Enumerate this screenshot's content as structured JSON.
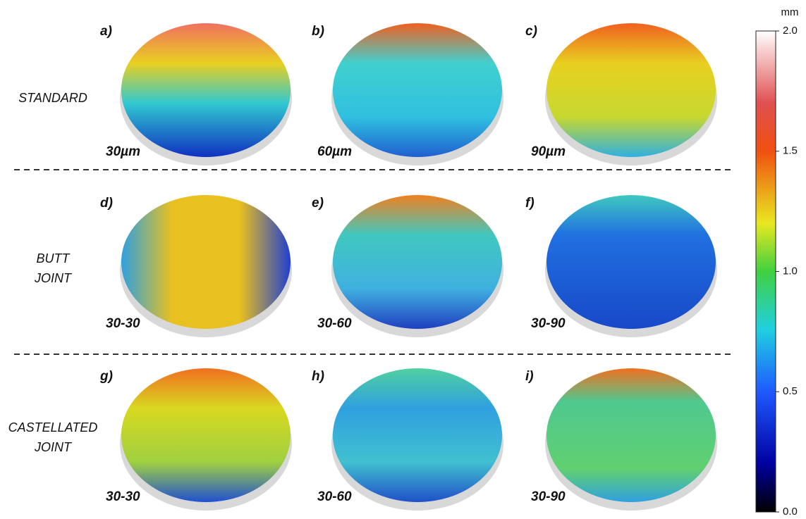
{
  "row_labels": [
    [
      "STANDARD"
    ],
    [
      "BUTT",
      "JOINT"
    ],
    [
      "CASTELLATED",
      "JOINT"
    ]
  ],
  "panels": [
    {
      "letter": "a)",
      "caption": "30µm"
    },
    {
      "letter": "b)",
      "caption": "60µm"
    },
    {
      "letter": "c)",
      "caption": "90µm"
    },
    {
      "letter": "d)",
      "caption": "30-30"
    },
    {
      "letter": "e)",
      "caption": "30-60"
    },
    {
      "letter": "f)",
      "caption": "30-90"
    },
    {
      "letter": "g)",
      "caption": "30-30"
    },
    {
      "letter": "h)",
      "caption": "30-60"
    },
    {
      "letter": "i)",
      "caption": "30-90"
    }
  ],
  "colorbar": {
    "unit": "mm",
    "lim": [
      0,
      2
    ],
    "ticks": [
      {
        "value": 0,
        "label": "0.0"
      },
      {
        "value": 0.5,
        "label": "0.5"
      },
      {
        "value": 1,
        "label": "1.0"
      },
      {
        "value": 1.5,
        "label": "1.5"
      },
      {
        "value": 2,
        "label": "2.0"
      }
    ]
  }
}
